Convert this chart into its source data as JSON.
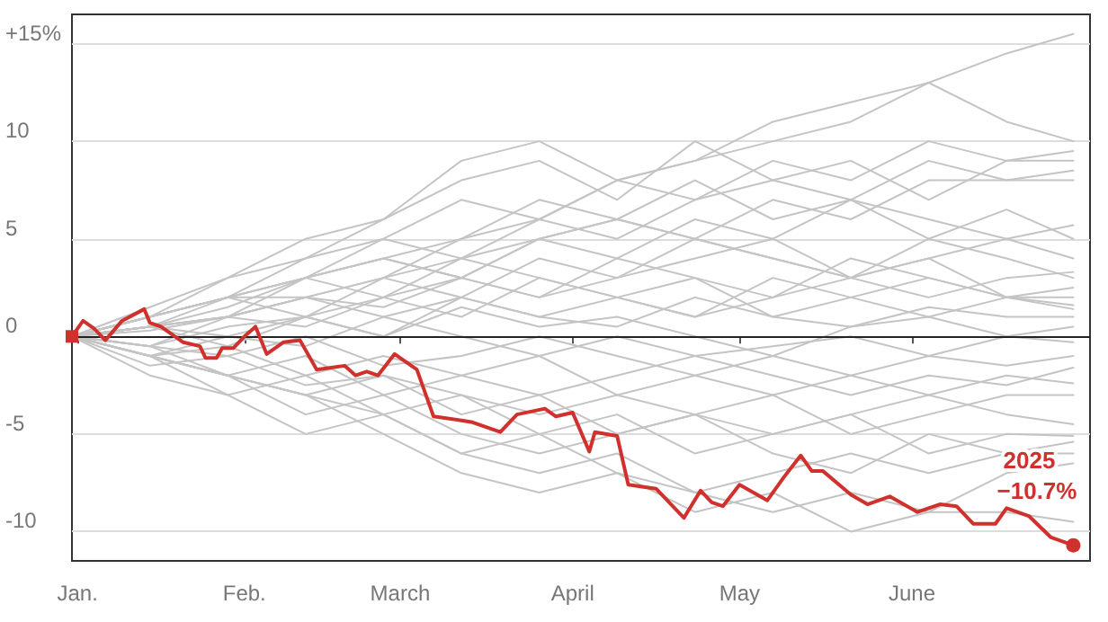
{
  "chart_data": {
    "type": "line",
    "x": [
      "--01-01",
      "--01-15",
      "--01-29",
      "--02-12",
      "--02-26",
      "--03-12",
      "--03-26",
      "--04-09",
      "--04-23",
      "--05-07",
      "--05-21",
      "--06-04",
      "--06-18",
      "--06-30"
    ],
    "xlim": [
      "--01-01",
      "--07-03"
    ],
    "xticks": [
      {
        "value": "--01-02",
        "label": "Jan."
      },
      {
        "value": "--02-01",
        "label": "Feb."
      },
      {
        "value": "--03-01",
        "label": "March"
      },
      {
        "value": "--04-01",
        "label": "April"
      },
      {
        "value": "--05-01",
        "label": "May"
      },
      {
        "value": "--06-01",
        "label": "June"
      }
    ],
    "ylim": [
      -11.5,
      16.5
    ],
    "yticks": [
      {
        "value": 15,
        "label": "+15%"
      },
      10,
      5,
      0,
      -5,
      -10
    ],
    "grid": "y",
    "legend": false,
    "ref_lines": [
      {
        "axis": "y",
        "value": 0,
        "color": "#222222"
      }
    ],
    "annotations": [
      {
        "text": "−10.7%",
        "x": "--06-30",
        "y": -10.7
      }
    ],
    "series": [
      {
        "color": "#c4c4c4",
        "values": [
          0,
          1,
          2,
          3,
          4,
          5,
          6,
          8,
          9,
          10,
          11,
          13,
          14.5,
          15.5
        ]
      },
      {
        "color": "#c4c4c4",
        "values": [
          0,
          1.5,
          3,
          4,
          6,
          9,
          10,
          8,
          9,
          11,
          12,
          13,
          11,
          10
        ]
      },
      {
        "color": "#c4c4c4",
        "values": [
          0,
          1,
          3,
          5,
          6,
          8,
          9,
          7,
          10,
          8,
          9,
          7,
          9,
          9.5
        ]
      },
      {
        "color": "#c4c4c4",
        "values": [
          0,
          0.5,
          2,
          3,
          5,
          4,
          6,
          8,
          7,
          9,
          8,
          10,
          9,
          9
        ]
      },
      {
        "color": "#c4c4c4",
        "values": [
          0,
          1,
          2,
          4,
          5,
          7,
          6,
          5,
          7,
          8,
          7,
          9,
          8,
          8.5
        ]
      },
      {
        "color": "#c4c4c4",
        "values": [
          0,
          0.5,
          1,
          3,
          2,
          4,
          5,
          6,
          5,
          7,
          6,
          8,
          8,
          8
        ]
      },
      {
        "color": "#c4c4c4",
        "values": [
          0,
          1,
          2,
          2,
          3,
          5,
          7,
          6,
          8,
          6,
          7,
          5,
          6.5,
          5
        ]
      },
      {
        "color": "#c4c4c4",
        "values": [
          0,
          0.5,
          1.5,
          3,
          4,
          3,
          5,
          4,
          6,
          5,
          7,
          6,
          5,
          4
        ]
      },
      {
        "color": "#c4c4c4",
        "values": [
          0,
          1,
          2,
          1,
          3,
          2,
          4,
          3,
          5,
          4,
          3,
          5,
          4,
          3
        ]
      },
      {
        "color": "#c4c4c4",
        "values": [
          0,
          0.5,
          1,
          2,
          1.5,
          3,
          2,
          4,
          3,
          2,
          4,
          3,
          2,
          2.5
        ]
      },
      {
        "color": "#c4c4c4",
        "values": [
          0,
          0.3,
          1,
          0.5,
          2,
          1,
          3,
          2,
          1,
          3,
          2,
          3,
          2,
          2
        ]
      },
      {
        "color": "#c4c4c4",
        "values": [
          0,
          -0.5,
          1,
          2,
          1,
          2,
          1,
          0.5,
          2,
          1,
          0.5,
          1.5,
          1,
          1
        ]
      },
      {
        "color": "#c4c4c4",
        "values": [
          0,
          0.5,
          -0.5,
          1,
          0,
          1.5,
          0.5,
          1,
          0,
          -1,
          0.5,
          1,
          0,
          0.5
        ]
      },
      {
        "color": "#c4c4c4",
        "values": [
          0,
          -1,
          0,
          -0.5,
          1,
          0,
          -1,
          0,
          -1,
          -0.5,
          0,
          -1,
          0,
          -0.3
        ]
      },
      {
        "color": "#c4c4c4",
        "values": [
          0,
          -0.5,
          -1,
          0,
          -1.5,
          -1,
          0,
          -1,
          -2,
          -1,
          -2,
          -1,
          -1.5,
          -1
        ]
      },
      {
        "color": "#c4c4c4",
        "values": [
          0,
          -1,
          -0.5,
          -2,
          -1,
          -2,
          -3,
          -2,
          -1,
          -2,
          -3,
          -2,
          -2.5,
          -1.6
        ]
      },
      {
        "color": "#c4c4c4",
        "values": [
          0,
          -1,
          -2,
          -1,
          -3,
          -2,
          -1,
          -3,
          -2,
          -3,
          -2,
          -3,
          -2,
          -2.4
        ]
      },
      {
        "color": "#c4c4c4",
        "values": [
          0,
          -1.5,
          -1,
          -2.5,
          -2,
          -3,
          -4,
          -3,
          -4,
          -3,
          -5,
          -4,
          -3,
          -3
        ]
      },
      {
        "color": "#c4c4c4",
        "values": [
          0,
          -1,
          -2,
          -3,
          -2,
          -4,
          -3,
          -5,
          -4,
          -5,
          -4,
          -3,
          -4,
          -4.5
        ]
      },
      {
        "color": "#c4c4c4",
        "values": [
          0,
          -0.5,
          -2,
          -3,
          -4,
          -3,
          -5,
          -4,
          -6,
          -5,
          -4,
          -6,
          -5,
          -5.1
        ]
      },
      {
        "color": "#c4c4c4",
        "values": [
          0,
          -1,
          -2,
          -4,
          -3,
          -5,
          -6,
          -5,
          -4,
          -6,
          -7,
          -5,
          -6,
          -5.4
        ]
      },
      {
        "color": "#c4c4c4",
        "values": [
          0,
          -1,
          -3,
          -2,
          -4,
          -6,
          -7,
          -6,
          -8,
          -7,
          -6,
          -7,
          -6,
          -6
        ]
      },
      {
        "color": "#c4c4c4",
        "values": [
          0,
          -2,
          -3,
          -5,
          -4,
          -6,
          -5,
          -7,
          -8,
          -9,
          -8,
          -9,
          -7,
          -6.5
        ]
      },
      {
        "color": "#c4c4c4",
        "values": [
          0,
          -1,
          -2,
          -3,
          -5,
          -7,
          -8,
          -7,
          -9,
          -8,
          -10,
          -9,
          -9,
          -9.5
        ]
      },
      {
        "color": "#c4c4c4",
        "values": [
          0,
          0.5,
          1,
          2,
          3,
          4,
          3,
          2,
          1,
          2,
          3,
          2,
          3,
          3.3
        ]
      },
      {
        "color": "#c4c4c4",
        "values": [
          0,
          1,
          2,
          3,
          4,
          3,
          5,
          6,
          5,
          4,
          3,
          4,
          2,
          1.6
        ]
      },
      {
        "color": "#c4c4c4",
        "values": [
          0,
          0.5,
          0,
          1,
          2,
          3,
          2,
          3,
          4,
          5,
          3,
          4,
          5,
          5.7
        ]
      },
      {
        "color": "#c4c4c4",
        "values": [
          0,
          -0.5,
          0.5,
          1,
          0,
          2,
          1,
          2,
          3,
          1,
          2,
          1,
          2,
          1.4
        ]
      },
      {
        "name": "2025",
        "color": "#d0312d",
        "x": [
          "--01-01",
          "--01-03",
          "--01-05",
          "--01-07",
          "--01-10",
          "--01-14",
          "--01-15",
          "--01-17",
          "--01-21",
          "--01-24",
          "--01-25",
          "--01-27",
          "--01-28",
          "--01-30",
          "--02-01",
          "--02-03",
          "--02-05",
          "--02-08",
          "--02-11",
          "--02-14",
          "--02-19",
          "--02-21",
          "--02-23",
          "--02-25",
          "--02-28",
          "--03-04",
          "--03-07",
          "--03-12",
          "--03-14",
          "--03-19",
          "--03-22",
          "--03-27",
          "--03-29",
          "--04-01",
          "--04-04",
          "--04-05",
          "--04-09",
          "--04-11",
          "--04-16",
          "--04-17",
          "--04-21",
          "--04-24",
          "--04-26",
          "--04-28",
          "--05-01",
          "--05-06",
          "--05-09",
          "--05-12",
          "--05-14",
          "--05-16",
          "--05-21",
          "--05-24",
          "--05-28",
          "--06-02",
          "--06-06",
          "--06-09",
          "--06-12",
          "--06-16",
          "--06-18",
          "--06-22",
          "--06-26",
          "--06-30"
        ],
        "values": [
          0,
          0.8,
          0.4,
          -0.2,
          0.8,
          1.4,
          0.7,
          0.5,
          -0.3,
          -0.5,
          -1.1,
          -1.1,
          -0.6,
          -0.6,
          0,
          0.5,
          -0.9,
          -0.3,
          -0.2,
          -1.7,
          -1.5,
          -2,
          -1.8,
          -2,
          -0.9,
          -1.7,
          -4.1,
          -4.3,
          -4.4,
          -4.9,
          -4,
          -3.7,
          -4.1,
          -3.9,
          -5.9,
          -4.9,
          -5.1,
          -7.6,
          -7.8,
          -8.1,
          -9.3,
          -7.9,
          -8.5,
          -8.7,
          -7.6,
          -8.4,
          -7.2,
          -6.1,
          -6.9,
          -6.9,
          -8.1,
          -8.6,
          -8.2,
          -9,
          -8.6,
          -8.7,
          -9.6,
          -9.6,
          -8.8,
          -9.2,
          -10.3,
          -10.7
        ]
      }
    ]
  }
}
